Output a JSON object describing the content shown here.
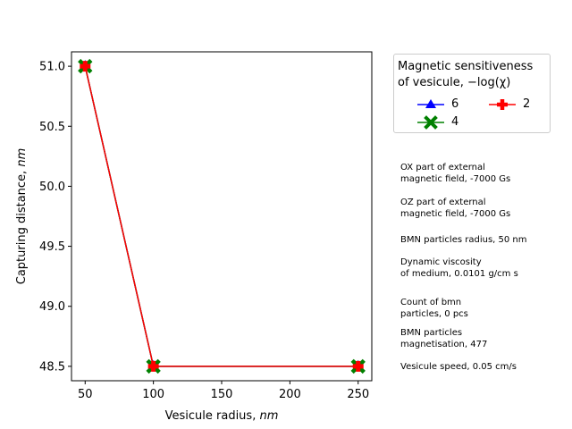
{
  "chart_data": {
    "type": "line",
    "xlabel": "Vesicule radius,",
    "xlabel_unit": "nm",
    "ylabel": "Capturing distance,",
    "ylabel_unit": "nm",
    "xlim": [
      40,
      260
    ],
    "ylim": [
      48.38,
      51.12
    ],
    "x_ticks": [
      50,
      100,
      150,
      200,
      250
    ],
    "y_ticks": [
      48.5,
      49.0,
      49.5,
      50.0,
      50.5,
      51.0
    ],
    "x_tick_labels": [
      "50",
      "100",
      "150",
      "200",
      "250"
    ],
    "y_tick_labels": [
      "48.5",
      "49.0",
      "49.5",
      "50.0",
      "50.5",
      "51.0"
    ],
    "grid": false,
    "legend_placement": "outside-right-top",
    "legend_title_line1": "Magnetic sensitiveness",
    "legend_title_line2": "of vesicule,  −log(χ)",
    "x": [
      50,
      100,
      250
    ],
    "series": [
      {
        "name": "6",
        "color": "#0000ff",
        "marker": "triangle",
        "values": [
          51.0,
          48.5,
          48.5
        ]
      },
      {
        "name": "4",
        "color": "#008000",
        "marker": "x-cross",
        "values": [
          51.0,
          48.5,
          48.5
        ]
      },
      {
        "name": "2",
        "color": "#ff0000",
        "marker": "plus",
        "values": [
          51.0,
          48.5,
          48.5
        ]
      }
    ]
  },
  "info": [
    "OX part of external\nmagnetic field, -7000 Gs",
    "OZ part of external\nmagnetic field, -7000 Gs",
    "BMN particles radius, 50 nm",
    "Dynamic viscosity\nof medium, 0.0101 g/cm s",
    "Count of bmn\nparticles, 0  pcs",
    "BMN particles\nmagnetisation, 477",
    "Vesicule speed, 0.05 cm/s"
  ]
}
